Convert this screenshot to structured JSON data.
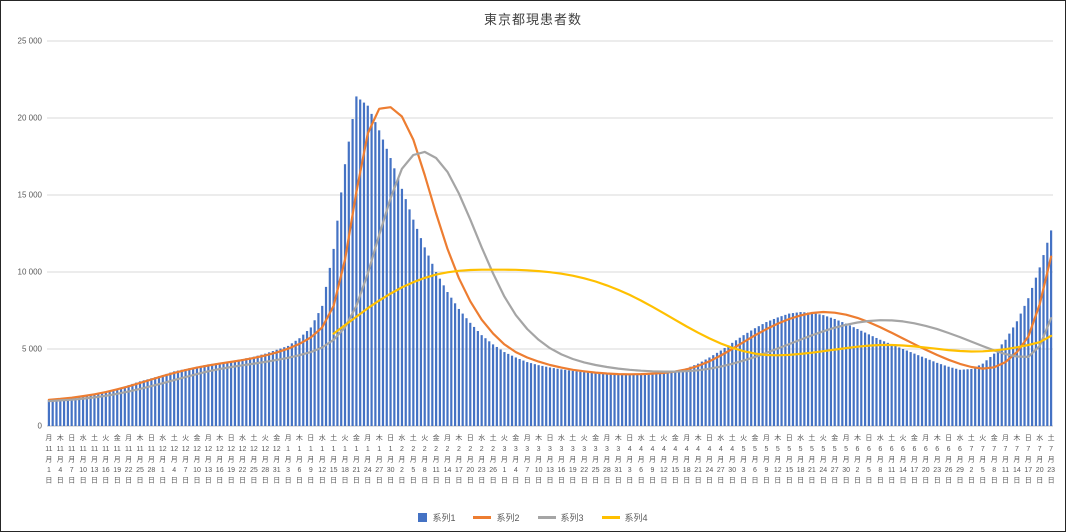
{
  "chart_data": {
    "type": "bar+line combo",
    "title": "東京都現患者数",
    "legend_position": "bottom",
    "grid": true,
    "y_axis": {
      "min": 0,
      "max": 25000,
      "step": 5000,
      "tick_labels": [
        "0",
        "5 000",
        "10 000",
        "15 000",
        "20 000",
        "25 000"
      ]
    },
    "x_axis": {
      "label_fields": [
        "weekday",
        "month",
        "day"
      ],
      "note": "labels every 3 days, daily bars; format: 曜日 / 月 / 日",
      "labels": [
        [
          "月",
          11,
          1
        ],
        [
          "木",
          11,
          4
        ],
        [
          "日",
          11,
          7
        ],
        [
          "水",
          11,
          10
        ],
        [
          "土",
          11,
          13
        ],
        [
          "火",
          11,
          16
        ],
        [
          "金",
          11,
          19
        ],
        [
          "月",
          11,
          22
        ],
        [
          "木",
          11,
          25
        ],
        [
          "日",
          11,
          28
        ],
        [
          "水",
          12,
          1
        ],
        [
          "土",
          12,
          4
        ],
        [
          "火",
          12,
          7
        ],
        [
          "金",
          12,
          10
        ],
        [
          "月",
          12,
          13
        ],
        [
          "木",
          12,
          16
        ],
        [
          "日",
          12,
          19
        ],
        [
          "水",
          12,
          22
        ],
        [
          "土",
          12,
          25
        ],
        [
          "火",
          12,
          28
        ],
        [
          "金",
          12,
          31
        ],
        [
          "月",
          1,
          3
        ],
        [
          "木",
          1,
          6
        ],
        [
          "日",
          1,
          9
        ],
        [
          "水",
          1,
          12
        ],
        [
          "土",
          1,
          15
        ],
        [
          "火",
          1,
          18
        ],
        [
          "金",
          1,
          21
        ],
        [
          "月",
          1,
          24
        ],
        [
          "木",
          1,
          27
        ],
        [
          "日",
          1,
          30
        ],
        [
          "水",
          2,
          2
        ],
        [
          "土",
          2,
          5
        ],
        [
          "火",
          2,
          8
        ],
        [
          "金",
          2,
          11
        ],
        [
          "月",
          2,
          14
        ],
        [
          "木",
          2,
          17
        ],
        [
          "日",
          2,
          20
        ],
        [
          "水",
          2,
          23
        ],
        [
          "土",
          2,
          26
        ],
        [
          "火",
          3,
          1
        ],
        [
          "金",
          3,
          4
        ],
        [
          "月",
          3,
          7
        ],
        [
          "木",
          3,
          10
        ],
        [
          "日",
          3,
          13
        ],
        [
          "水",
          3,
          16
        ],
        [
          "土",
          3,
          19
        ],
        [
          "火",
          3,
          22
        ],
        [
          "金",
          3,
          25
        ],
        [
          "月",
          3,
          28
        ],
        [
          "木",
          3,
          31
        ],
        [
          "日",
          4,
          3
        ],
        [
          "水",
          4,
          6
        ],
        [
          "土",
          4,
          9
        ],
        [
          "火",
          4,
          12
        ],
        [
          "金",
          4,
          15
        ],
        [
          "月",
          4,
          18
        ],
        [
          "木",
          4,
          21
        ],
        [
          "日",
          4,
          24
        ],
        [
          "水",
          4,
          27
        ],
        [
          "土",
          4,
          30
        ],
        [
          "火",
          5,
          3
        ],
        [
          "金",
          5,
          6
        ],
        [
          "月",
          5,
          9
        ],
        [
          "木",
          5,
          12
        ],
        [
          "日",
          5,
          15
        ],
        [
          "水",
          5,
          18
        ],
        [
          "土",
          5,
          21
        ],
        [
          "火",
          5,
          24
        ],
        [
          "金",
          5,
          27
        ],
        [
          "月",
          5,
          30
        ],
        [
          "木",
          6,
          2
        ],
        [
          "日",
          6,
          5
        ],
        [
          "水",
          6,
          8
        ],
        [
          "土",
          6,
          11
        ],
        [
          "火",
          6,
          14
        ],
        [
          "金",
          6,
          17
        ],
        [
          "月",
          6,
          20
        ],
        [
          "木",
          6,
          23
        ],
        [
          "日",
          6,
          26
        ],
        [
          "水",
          6,
          29
        ],
        [
          "土",
          7,
          2
        ],
        [
          "火",
          7,
          5
        ],
        [
          "金",
          7,
          8
        ],
        [
          "月",
          7,
          11
        ],
        [
          "木",
          7,
          14
        ],
        [
          "日",
          7,
          17
        ],
        [
          "水",
          7,
          20
        ],
        [
          "土",
          7,
          23
        ]
      ]
    },
    "series": [
      {
        "name": "系列1",
        "type": "bar",
        "color": "#4472C4",
        "values": [
          1700,
          1750,
          1800,
          1900,
          2050,
          2200,
          2400,
          2650,
          2900,
          3100,
          3300,
          3550,
          3700,
          3850,
          4000,
          4100,
          4200,
          4350,
          4500,
          4700,
          4950,
          5200,
          5700,
          6400,
          7800,
          11500,
          17000,
          21400,
          20800,
          19200,
          17400,
          15400,
          13400,
          11600,
          10000,
          8700,
          7600,
          6700,
          5900,
          5300,
          4800,
          4450,
          4150,
          3950,
          3800,
          3680,
          3580,
          3500,
          3450,
          3400,
          3380,
          3370,
          3380,
          3420,
          3480,
          3570,
          3750,
          4050,
          4450,
          4900,
          5400,
          5900,
          6350,
          6750,
          7050,
          7300,
          7400,
          7350,
          7200,
          6950,
          6650,
          6300,
          5950,
          5600,
          5300,
          5000,
          4700,
          4400,
          4100,
          3850,
          3650,
          3700,
          4050,
          4700,
          5600,
          6800,
          8300,
          10300,
          12700
        ]
      },
      {
        "name": "系列2",
        "type": "line",
        "color": "#ED7D31",
        "values": [
          1700,
          1760,
          1840,
          1940,
          2060,
          2200,
          2380,
          2580,
          2800,
          3020,
          3240,
          3450,
          3630,
          3790,
          3930,
          4050,
          4160,
          4280,
          4420,
          4580,
          4780,
          5020,
          5330,
          5750,
          6400,
          7800,
          10800,
          15200,
          19000,
          20600,
          20700,
          20100,
          18600,
          16300,
          13800,
          11500,
          9600,
          8100,
          6900,
          6000,
          5300,
          4800,
          4450,
          4180,
          3960,
          3790,
          3650,
          3550,
          3470,
          3410,
          3370,
          3360,
          3370,
          3400,
          3450,
          3540,
          3680,
          3900,
          4200,
          4580,
          5000,
          5450,
          5890,
          6290,
          6650,
          6950,
          7180,
          7340,
          7400,
          7360,
          7230,
          7020,
          6740,
          6410,
          6050,
          5680,
          5310,
          4950,
          4610,
          4300,
          4030,
          3830,
          3730,
          3810,
          4150,
          4800,
          5800,
          7900,
          11000
        ]
      },
      {
        "name": "系列3",
        "type": "line",
        "color": "#A5A5A5",
        "values": [
          1620,
          1660,
          1710,
          1780,
          1860,
          1960,
          2090,
          2240,
          2410,
          2590,
          2780,
          2980,
          3180,
          3370,
          3550,
          3700,
          3830,
          3940,
          4050,
          4160,
          4290,
          4430,
          4600,
          4800,
          5100,
          5600,
          6400,
          7800,
          9900,
          12400,
          14800,
          16700,
          17600,
          17800,
          17400,
          16500,
          15100,
          13400,
          11600,
          9900,
          8400,
          7200,
          6300,
          5600,
          5050,
          4650,
          4350,
          4130,
          3960,
          3830,
          3730,
          3650,
          3590,
          3550,
          3530,
          3530,
          3560,
          3620,
          3720,
          3860,
          4040,
          4250,
          4490,
          4750,
          5030,
          5320,
          5610,
          5890,
          6150,
          6380,
          6570,
          6720,
          6820,
          6870,
          6860,
          6790,
          6670,
          6500,
          6290,
          6040,
          5770,
          5480,
          5190,
          4910,
          4670,
          4510,
          4490,
          5200,
          7000
        ]
      },
      {
        "name": "系列4",
        "type": "line",
        "color": "#FFC000",
        "values": [
          null,
          null,
          null,
          null,
          null,
          null,
          null,
          null,
          null,
          null,
          null,
          null,
          null,
          null,
          null,
          null,
          null,
          null,
          null,
          null,
          null,
          null,
          null,
          null,
          null,
          6000,
          6550,
          7100,
          7650,
          8150,
          8600,
          9000,
          9340,
          9620,
          9830,
          9980,
          10080,
          10130,
          10150,
          10150,
          10150,
          10140,
          10110,
          10060,
          9990,
          9890,
          9760,
          9590,
          9380,
          9130,
          8840,
          8510,
          8140,
          7740,
          7320,
          6890,
          6460,
          6060,
          5690,
          5360,
          5080,
          4860,
          4700,
          4610,
          4590,
          4620,
          4680,
          4760,
          4860,
          4960,
          5060,
          5150,
          5220,
          5260,
          5260,
          5230,
          5170,
          5090,
          5010,
          4930,
          4870,
          4840,
          4850,
          4900,
          4990,
          5110,
          5260,
          5440,
          5850
        ]
      }
    ]
  }
}
